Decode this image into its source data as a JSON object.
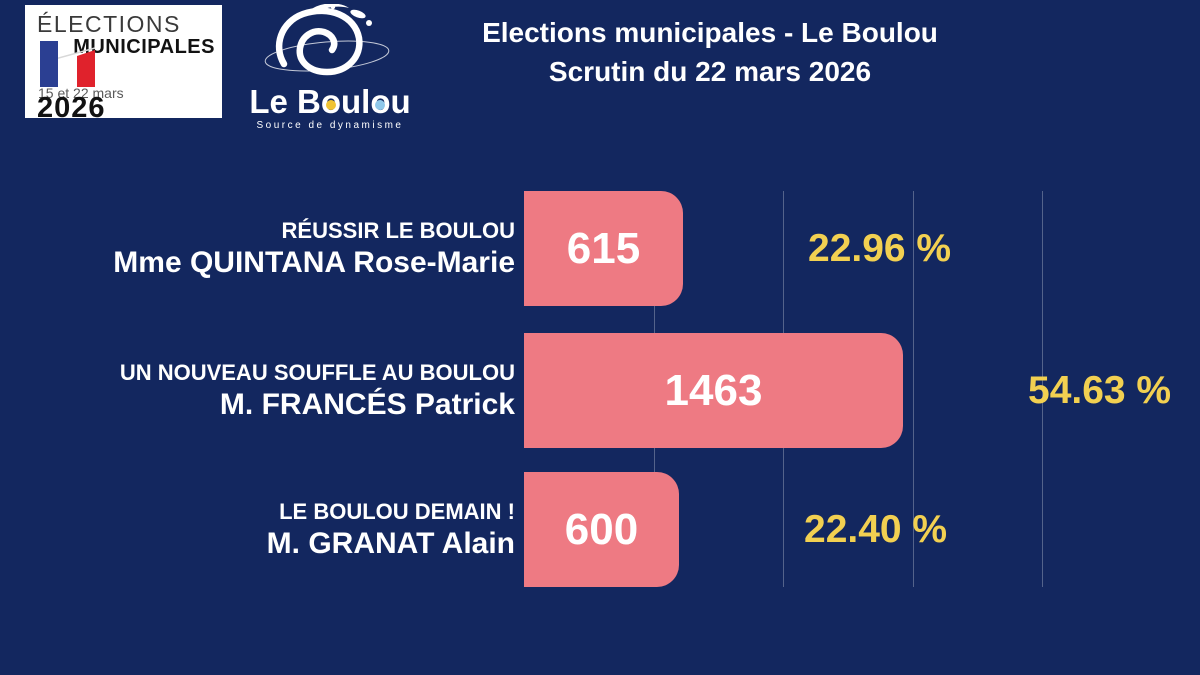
{
  "header": {
    "badge": {
      "title_top": "ÉLECTIONS",
      "title_bottom": "MUNICIPALES",
      "dates": "15 et 22 mars",
      "year": "2026"
    },
    "logo": {
      "name_parts": [
        "Le B",
        "o",
        "ul",
        "o",
        "u"
      ],
      "tagline": "Source de dynamisme"
    },
    "title_line1": "Elections municipales - Le Boulou",
    "title_line2": "Scrutin du 22 mars 2026"
  },
  "chart_data": {
    "type": "bar",
    "orientation": "horizontal",
    "title": "Elections municipales - Le Boulou",
    "subtitle": "Scrutin du 22 mars 2026",
    "categories": [
      "Mme QUINTANA Rose-Marie",
      "M. FRANCÉS Patrick",
      "M. GRANAT Alain"
    ],
    "values": [
      615,
      1463,
      600
    ],
    "percentages": [
      22.96,
      54.63,
      22.4
    ],
    "xlim": [
      0,
      2200
    ],
    "xticks": [
      500,
      1000,
      1500,
      2000
    ],
    "grid": true,
    "legend": "none",
    "rows": [
      {
        "list": "RÉUSSIR LE BOULOU",
        "candidate": "Mme QUINTANA Rose-Marie",
        "votes": "615",
        "percent": "22.96 %"
      },
      {
        "list": "UN NOUVEAU SOUFFLE AU BOULOU",
        "candidate": "M. FRANCÉS Patrick",
        "votes": "1463",
        "percent": "54.63 %"
      },
      {
        "list": "LE BOULOU DEMAIN !",
        "candidate": "M. GRANAT Alain",
        "votes": "600",
        "percent": "22.40 %"
      }
    ]
  },
  "colors": {
    "background": "#13275f",
    "bar": "#ee7a83",
    "percent_text": "#f2d051",
    "text": "#ffffff",
    "flag_blue": "#2b3f92",
    "flag_red": "#e0222c"
  }
}
